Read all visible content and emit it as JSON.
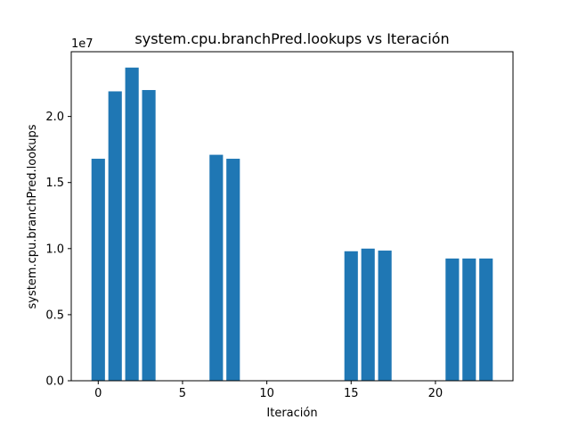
{
  "chart_data": {
    "type": "bar",
    "title": "system.cpu.branchPred.lookups vs Iteración",
    "xlabel": "Iteración",
    "ylabel": "system.cpu.branchPred.lookups",
    "scale_label": "1e7",
    "x": [
      0,
      1,
      2,
      3,
      7,
      8,
      15,
      16,
      17,
      21,
      22,
      23
    ],
    "values": [
      16800000,
      21900000,
      23700000,
      22000000,
      17100000,
      16800000,
      9800000,
      10000000,
      9850000,
      9250000,
      9250000,
      9250000
    ],
    "xlim": [
      -1.6,
      24.6
    ],
    "ylim": [
      0,
      24900000
    ],
    "xticks": [
      0,
      5,
      10,
      15,
      20
    ],
    "xtick_labels": [
      "0",
      "5",
      "10",
      "15",
      "20"
    ],
    "yticks": [
      0,
      5000000,
      10000000,
      15000000,
      20000000
    ],
    "ytick_labels": [
      "0.0",
      "0.5",
      "1.0",
      "1.5",
      "2.0"
    ],
    "bar_color": "#1f77b4",
    "grid": false,
    "legend": "none"
  }
}
